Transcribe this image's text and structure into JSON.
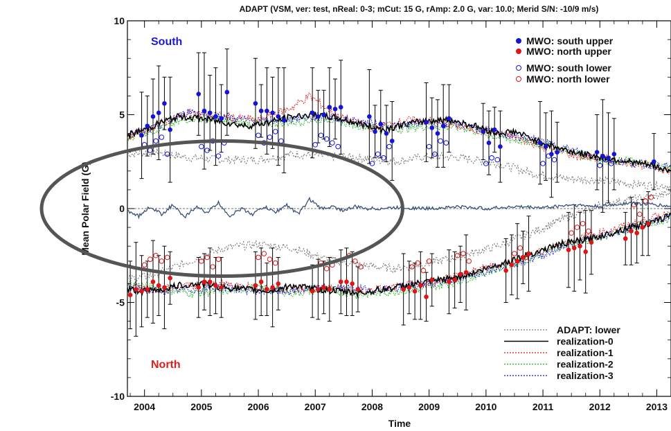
{
  "chart_data": {
    "type": "scatter",
    "title": "ADAPT (VSM, ver: test, nReal: 0-3; mCut: 15 G, rAmp: 2.0 G, var: 10.0; Merid S/N: -10/9 m/s)",
    "xlabel": "Time",
    "ylabel": "Mean Polar Field (G)",
    "xlim": [
      2003.7,
      2013.25
    ],
    "ylim": [
      -10,
      10
    ],
    "x_ticks": [
      "2004",
      "2005",
      "2006",
      "2007",
      "2008",
      "2009",
      "2010",
      "2011",
      "2012",
      "2013"
    ],
    "y_ticks": [
      "-10",
      "-5",
      "0",
      "5",
      "10"
    ],
    "annotations": {
      "south": {
        "text": "South",
        "color": "#1a1ad6"
      },
      "north": {
        "text": "North",
        "color": "#e01c1c"
      }
    },
    "highlight": {
      "shape": "ellipse",
      "color": "#555555",
      "covers_time": [
        2003.7,
        2008.0
      ],
      "covers_field": [
        -3.6,
        3.6
      ]
    },
    "legend_top": [
      {
        "label": "MWO: south upper",
        "marker": "filled-circle",
        "color": "#1414d8"
      },
      {
        "label": "MWO: north upper",
        "marker": "filled-circle",
        "color": "#e01414"
      },
      {
        "label": "MWO: south lower",
        "marker": "open-circle",
        "color": "#1414d8"
      },
      {
        "label": "MWO: north lower",
        "marker": "open-circle",
        "color": "#e01414"
      }
    ],
    "legend_bottom": [
      {
        "label": "ADAPT: lower",
        "style": "dotted",
        "color": "#777777"
      },
      {
        "label": "realization-0",
        "style": "solid",
        "color": "#000000"
      },
      {
        "label": "realization-1",
        "style": "dotted",
        "color": "#e01414"
      },
      {
        "label": "realization-2",
        "style": "dotted",
        "color": "#14b414"
      },
      {
        "label": "realization-3",
        "style": "dotted",
        "color": "#1414d8"
      }
    ],
    "series": [
      {
        "name": "realization-0",
        "color": "#000000",
        "south_x": [
          2003.7,
          2004.0,
          2004.3,
          2004.6,
          2005.0,
          2005.4,
          2005.8,
          2006.2,
          2006.6,
          2007.0,
          2007.4,
          2007.8,
          2008.2,
          2008.6,
          2009.0,
          2009.4,
          2009.8,
          2010.2,
          2010.5,
          2010.9,
          2011.3,
          2011.7,
          2012.1,
          2012.5,
          2012.9,
          2013.25
        ],
        "south_y": [
          3.9,
          4.2,
          4.6,
          4.9,
          4.8,
          4.6,
          4.4,
          4.6,
          4.9,
          5.0,
          4.8,
          4.5,
          4.2,
          4.5,
          4.7,
          4.7,
          4.4,
          4.0,
          4.1,
          3.6,
          3.2,
          2.9,
          2.7,
          2.5,
          2.3,
          2.0
        ],
        "north_x": [
          2003.7,
          2004.0,
          2004.3,
          2004.6,
          2005.0,
          2005.4,
          2005.8,
          2006.2,
          2006.6,
          2007.0,
          2007.4,
          2007.8,
          2008.2,
          2008.6,
          2009.0,
          2009.4,
          2009.8,
          2010.2,
          2010.5,
          2010.9,
          2011.3,
          2011.7,
          2012.1,
          2012.5,
          2012.9,
          2013.25
        ],
        "north_y": [
          -4.3,
          -4.4,
          -4.3,
          -4.1,
          -4.0,
          -4.2,
          -4.3,
          -4.4,
          -4.1,
          -4.3,
          -4.4,
          -4.5,
          -4.3,
          -4.1,
          -3.9,
          -3.7,
          -3.4,
          -3.0,
          -2.7,
          -2.3,
          -1.9,
          -1.7,
          -1.4,
          -1.0,
          -0.8,
          -0.3
        ]
      },
      {
        "name": "realization-1",
        "color": "#e01414",
        "south_x": [
          2003.7,
          2004.2,
          2004.8,
          2005.4,
          2006.0,
          2006.6,
          2006.9,
          2007.4,
          2008.0,
          2008.6,
          2009.2,
          2009.8,
          2010.4,
          2011.0,
          2011.6,
          2012.2,
          2012.8,
          2013.25
        ],
        "south_y": [
          3.8,
          4.4,
          5.1,
          4.9,
          4.7,
          5.4,
          6.0,
          4.9,
          4.3,
          4.7,
          4.6,
          4.2,
          3.9,
          3.3,
          2.8,
          2.6,
          2.3,
          2.0
        ],
        "north_x": [
          2003.7,
          2004.2,
          2004.8,
          2005.4,
          2006.0,
          2006.6,
          2007.2,
          2007.8,
          2008.4,
          2009.0,
          2009.6,
          2010.2,
          2010.8,
          2011.4,
          2012.0,
          2012.6,
          2013.25
        ],
        "north_y": [
          -4.1,
          -4.3,
          -4.1,
          -4.0,
          -4.2,
          -4.3,
          -4.2,
          -4.4,
          -4.2,
          -3.9,
          -3.5,
          -3.0,
          -2.5,
          -1.8,
          -1.3,
          -0.8,
          -0.2
        ]
      },
      {
        "name": "realization-2",
        "color": "#14b414",
        "south_x": [
          2003.7,
          2004.2,
          2004.8,
          2005.4,
          2006.0,
          2006.6,
          2007.2,
          2007.8,
          2008.4,
          2009.0,
          2009.6,
          2010.2,
          2010.8,
          2011.4,
          2012.0,
          2012.6,
          2013.25
        ],
        "south_y": [
          3.8,
          4.2,
          4.8,
          4.7,
          4.5,
          4.6,
          4.8,
          4.4,
          4.2,
          4.4,
          4.3,
          3.8,
          3.5,
          3.1,
          2.6,
          2.5,
          2.1
        ],
        "north_x": [
          2003.7,
          2004.2,
          2004.8,
          2005.4,
          2006.0,
          2006.6,
          2007.2,
          2007.8,
          2008.4,
          2009.0,
          2009.6,
          2010.2,
          2010.8,
          2011.4,
          2012.0,
          2012.6,
          2013.25
        ],
        "north_y": [
          -4.0,
          -4.2,
          -4.5,
          -4.4,
          -4.2,
          -4.5,
          -4.3,
          -4.6,
          -4.4,
          -4.2,
          -3.8,
          -3.2,
          -2.6,
          -1.9,
          -1.6,
          -1.0,
          -0.5
        ]
      },
      {
        "name": "realization-3",
        "color": "#1414d8",
        "south_x": [
          2003.7,
          2004.2,
          2004.8,
          2005.4,
          2006.0,
          2006.6,
          2007.2,
          2007.8,
          2008.4,
          2009.0,
          2009.6,
          2010.2,
          2010.8,
          2011.4,
          2012.0,
          2012.6,
          2013.25
        ],
        "south_y": [
          3.9,
          4.3,
          5.2,
          4.9,
          4.6,
          4.8,
          4.9,
          4.6,
          4.4,
          4.6,
          4.5,
          4.0,
          3.7,
          3.2,
          2.7,
          2.4,
          2.2
        ],
        "north_x": [
          2003.7,
          2004.2,
          2004.8,
          2005.4,
          2006.0,
          2006.6,
          2007.2,
          2007.8,
          2008.4,
          2009.0,
          2009.6,
          2010.2,
          2010.8,
          2011.4,
          2012.0,
          2012.6,
          2013.25
        ],
        "north_y": [
          -4.2,
          -4.4,
          -4.3,
          -4.2,
          -4.4,
          -4.4,
          -4.2,
          -4.3,
          -4.3,
          -4.0,
          -3.7,
          -3.1,
          -2.7,
          -2.0,
          -1.5,
          -1.0,
          -0.4
        ]
      },
      {
        "name": "ADAPT: lower",
        "color": "#777777",
        "south_x": [
          2003.7,
          2004.2,
          2004.8,
          2005.4,
          2006.0,
          2006.6,
          2007.2,
          2007.8,
          2008.4,
          2009.0,
          2009.6,
          2010.2,
          2010.8,
          2011.4,
          2012.0,
          2012.6,
          2013.25
        ],
        "south_y": [
          2.9,
          3.0,
          2.7,
          2.6,
          2.6,
          2.9,
          2.8,
          2.7,
          2.5,
          2.8,
          2.7,
          2.4,
          1.9,
          1.6,
          1.5,
          1.3,
          1.2
        ],
        "north_x": [
          2003.7,
          2004.2,
          2004.8,
          2005.4,
          2006.0,
          2006.6,
          2007.2,
          2007.8,
          2008.4,
          2009.0,
          2009.6,
          2010.2,
          2010.8,
          2011.4,
          2012.0,
          2012.6,
          2013.25
        ],
        "north_y": [
          -3.8,
          -3.5,
          -2.8,
          -2.1,
          -1.9,
          -2.1,
          -2.7,
          -3.0,
          -3.2,
          -2.9,
          -2.5,
          -2.0,
          -1.3,
          -0.5,
          0.2,
          0.5,
          0.8
        ]
      }
    ],
    "delta_series": {
      "name": "difference",
      "color": "#345078",
      "x": [
        2003.7,
        2003.9,
        2004.1,
        2004.3,
        2004.5,
        2004.7,
        2004.9,
        2005.1,
        2005.3,
        2005.5,
        2005.7,
        2005.9,
        2006.1,
        2006.3,
        2006.5,
        2006.7,
        2006.9,
        2007.1,
        2007.3,
        2007.5,
        2007.7,
        2007.9,
        2008.1,
        2008.5,
        2009.0,
        2009.5,
        2010.0,
        2010.5,
        2011.0,
        2011.5,
        2012.0,
        2012.5,
        2013.0,
        2013.25
      ],
      "y": [
        -0.1,
        -0.4,
        0.1,
        -0.3,
        0.2,
        -0.5,
        0.1,
        -0.2,
        0.3,
        -0.4,
        0.0,
        -0.3,
        0.1,
        -0.2,
        0.2,
        -0.3,
        0.5,
        0.0,
        0.1,
        -0.1,
        0.1,
        0.0,
        0.0,
        0.05,
        0.0,
        0.1,
        0.0,
        0.1,
        0.05,
        0.2,
        0.1,
        0.3,
        0.2,
        0.1
      ]
    },
    "mwo_south_upper": {
      "x": [
        2003.95,
        2004.05,
        2004.15,
        2004.25,
        2004.35,
        2004.45,
        2004.95,
        2005.05,
        2005.15,
        2005.25,
        2005.35,
        2005.45,
        2005.95,
        2006.05,
        2006.15,
        2006.25,
        2006.35,
        2006.45,
        2006.95,
        2007.05,
        2007.15,
        2007.25,
        2007.35,
        2007.45,
        2007.95,
        2008.05,
        2008.15,
        2008.25,
        2008.35,
        2008.95,
        2009.05,
        2009.15,
        2009.25,
        2009.35,
        2009.95,
        2010.05,
        2010.15,
        2010.25,
        2010.95,
        2011.05,
        2011.15,
        2011.25,
        2011.95,
        2012.05,
        2012.15,
        2012.25,
        2012.95
      ],
      "y": [
        3.9,
        4.4,
        4.9,
        5.1,
        5.6,
        4.2,
        6.1,
        5.2,
        5.1,
        4.9,
        4.8,
        6.2,
        5.6,
        5.2,
        5.2,
        5.1,
        4.9,
        4.7,
        5.1,
        4.9,
        5.0,
        5.4,
        5.3,
        5.4,
        4.9,
        4.1,
        4.5,
        4.0,
        3.6,
        4.6,
        4.3,
        4.0,
        4.4,
        4.8,
        4.1,
        3.5,
        4.2,
        3.3,
        3.5,
        3.3,
        2.9,
        3.0,
        3.0,
        2.8,
        2.7,
        2.9,
        2.5
      ],
      "err": [
        2.3,
        1.6,
        2.0,
        2.5,
        1.4,
        2.8,
        2.2,
        3.1,
        2.0,
        2.6,
        1.8,
        2.3,
        2.4,
        1.4,
        2.3,
        1.9,
        2.6,
        2.8,
        2.4,
        1.4,
        1.3,
        2.1,
        1.6,
        2.5,
        2.5,
        1.4,
        1.8,
        1.5,
        2.1,
        2.1,
        1.6,
        1.8,
        2.2,
        1.8,
        1.5,
        1.7,
        1.2,
        1.9,
        2.2,
        1.8,
        2.3,
        1.6,
        2.0,
        3.0,
        2.4,
        1.9,
        1.5
      ]
    },
    "mwo_south_lower": {
      "x": [
        2004.0,
        2004.1,
        2004.2,
        2004.3,
        2004.4,
        2005.0,
        2005.1,
        2005.2,
        2005.3,
        2005.4,
        2006.0,
        2006.1,
        2006.2,
        2006.3,
        2006.4,
        2007.0,
        2007.1,
        2007.2,
        2007.3,
        2007.4,
        2008.0,
        2008.1,
        2008.2,
        2008.3,
        2009.0,
        2009.1,
        2009.2,
        2009.3,
        2010.0,
        2010.1,
        2010.2,
        2011.0,
        2011.1,
        2011.2,
        2012.0,
        2012.1,
        2012.2
      ],
      "y": [
        3.4,
        3.1,
        3.6,
        3.8,
        2.9,
        3.3,
        3.1,
        3.6,
        2.8,
        3.5,
        3.9,
        3.5,
        3.8,
        4.1,
        3.6,
        3.4,
        3.9,
        3.7,
        3.5,
        3.3,
        2.4,
        2.9,
        2.7,
        3.3,
        3.3,
        2.9,
        3.6,
        3.5,
        2.4,
        2.7,
        2.6,
        2.4,
        2.8,
        2.6,
        2.3,
        2.6,
        2.4
      ]
    },
    "mwo_north_upper": {
      "x": [
        2003.75,
        2003.85,
        2003.95,
        2004.05,
        2004.15,
        2004.25,
        2004.35,
        2004.45,
        2004.95,
        2005.05,
        2005.15,
        2005.25,
        2005.35,
        2005.95,
        2006.05,
        2006.15,
        2006.25,
        2006.35,
        2006.95,
        2007.05,
        2007.15,
        2007.25,
        2007.45,
        2007.55,
        2007.65,
        2007.75,
        2008.55,
        2008.65,
        2008.75,
        2008.85,
        2008.95,
        2009.05,
        2009.35,
        2009.45,
        2009.55,
        2009.65,
        2010.35,
        2010.45,
        2010.55,
        2010.65,
        2010.75,
        2011.45,
        2011.55,
        2011.65,
        2011.75,
        2011.85,
        2012.45,
        2012.55,
        2012.65,
        2012.75,
        2012.85
      ],
      "y": [
        -4.6,
        -4.3,
        -4.4,
        -4.3,
        -3.9,
        -4.1,
        -4.2,
        -3.7,
        -4.2,
        -3.9,
        -3.9,
        -4.1,
        -4.2,
        -4.1,
        -3.9,
        -4.3,
        -4.2,
        -4.0,
        -4.4,
        -4.3,
        -4.2,
        -4.3,
        -3.9,
        -3.9,
        -4.0,
        -4.3,
        -4.3,
        -4.2,
        -4.4,
        -4.1,
        -4.7,
        -3.8,
        -3.9,
        -3.8,
        -3.5,
        -3.4,
        -3.3,
        -3.0,
        -2.8,
        -2.6,
        -2.4,
        -2.2,
        -2.1,
        -2.0,
        -2.3,
        -1.8,
        -1.6,
        -1.2,
        -1.3,
        -1.0,
        -0.8
      ],
      "err": [
        1.8,
        2.5,
        1.9,
        1.5,
        2.2,
        1.6,
        2.2,
        1.4,
        1.6,
        1.5,
        1.8,
        1.5,
        1.6,
        1.8,
        1.8,
        1.4,
        2.1,
        1.4,
        1.4,
        1.6,
        1.4,
        1.7,
        1.7,
        1.8,
        1.7,
        1.2,
        1.9,
        1.4,
        1.5,
        1.8,
        1.3,
        1.4,
        1.7,
        1.5,
        1.5,
        2.0,
        1.7,
        1.6,
        2.0,
        1.4,
        2.0,
        2.0,
        2.3,
        1.8,
        2.2,
        1.7,
        1.4,
        1.8,
        1.6,
        1.5,
        1.7
      ]
    },
    "mwo_north_lower": {
      "x": [
        2004.0,
        2004.1,
        2004.2,
        2004.3,
        2004.4,
        2005.0,
        2005.1,
        2005.2,
        2005.3,
        2006.0,
        2006.1,
        2006.2,
        2006.3,
        2007.1,
        2007.2,
        2007.3,
        2007.6,
        2007.7,
        2007.8,
        2008.7,
        2008.8,
        2008.9,
        2009.0,
        2009.5,
        2009.6,
        2009.7,
        2010.5,
        2010.6,
        2010.7,
        2011.5,
        2011.6,
        2011.7,
        2011.8,
        2012.6,
        2012.7,
        2012.8,
        2012.9
      ],
      "y": [
        -3.0,
        -2.7,
        -2.5,
        -2.8,
        -2.6,
        -2.8,
        -2.6,
        -3.1,
        -2.7,
        -2.6,
        -2.4,
        -2.7,
        -2.9,
        -2.9,
        -3.2,
        -3.0,
        -2.5,
        -2.8,
        -3.1,
        -3.1,
        -2.9,
        -3.3,
        -2.8,
        -2.5,
        -2.4,
        -2.8,
        -2.4,
        -2.1,
        -2.6,
        -1.3,
        -1.0,
        -0.8,
        -1.2,
        0.2,
        -0.3,
        0.4,
        0.6
      ]
    }
  }
}
